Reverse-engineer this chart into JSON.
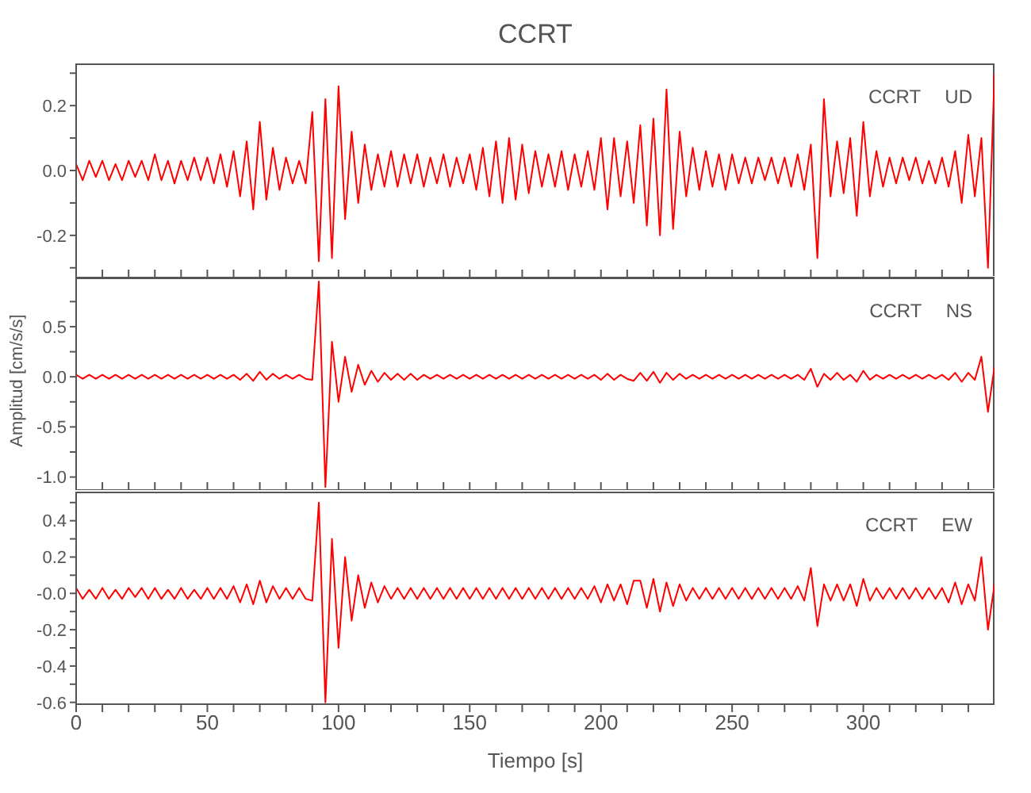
{
  "chart_data": [
    {
      "type": "line",
      "title": "CCRT",
      "annotations": [
        "CCRT UD"
      ],
      "tick_labels": "y",
      "legend": false,
      "marker": "none",
      "xlim": [
        0,
        350
      ],
      "ylim": [
        -0.33,
        0.33
      ],
      "xticks": [
        0,
        {
          "value": 10,
          "label": null
        },
        {
          "value": 20,
          "label": null
        },
        {
          "value": 30,
          "label": null
        },
        {
          "value": 40,
          "label": null
        },
        50,
        {
          "value": 60,
          "label": null
        },
        {
          "value": 70,
          "label": null
        },
        {
          "value": 80,
          "label": null
        },
        {
          "value": 90,
          "label": null
        },
        100,
        {
          "value": 110,
          "label": null
        },
        {
          "value": 120,
          "label": null
        },
        {
          "value": 130,
          "label": null
        },
        {
          "value": 140,
          "label": null
        },
        150,
        {
          "value": 160,
          "label": null
        },
        {
          "value": 170,
          "label": null
        },
        {
          "value": 180,
          "label": null
        },
        {
          "value": 190,
          "label": null
        },
        200,
        {
          "value": 210,
          "label": null
        },
        {
          "value": 220,
          "label": null
        },
        {
          "value": 230,
          "label": null
        },
        {
          "value": 240,
          "label": null
        },
        250,
        {
          "value": 260,
          "label": null
        },
        {
          "value": 270,
          "label": null
        },
        {
          "value": 280,
          "label": null
        },
        {
          "value": 290,
          "label": null
        },
        300,
        {
          "value": 310,
          "label": null
        },
        {
          "value": 320,
          "label": null
        },
        {
          "value": 330,
          "label": null
        },
        {
          "value": 340,
          "label": null
        }
      ],
      "yticks": [
        {
          "value": -0.3,
          "label": null
        },
        -0.2,
        {
          "value": -0.1,
          "label": null
        },
        {
          "value": 0,
          "label": "0.0"
        },
        {
          "value": 0.1,
          "label": null
        },
        0.2,
        {
          "value": 0.3,
          "label": null
        }
      ],
      "x": [
        0,
        2.5,
        5,
        7.5,
        10,
        12.5,
        15,
        17.5,
        20,
        22.5,
        25,
        27.5,
        30,
        32.5,
        35,
        37.5,
        40,
        42.5,
        45,
        47.5,
        50,
        52.5,
        55,
        57.5,
        60,
        62.5,
        65,
        67.5,
        70,
        72.5,
        75,
        77.5,
        80,
        82.5,
        85,
        87.5,
        90,
        92.5,
        95,
        97.5,
        100,
        102.5,
        105,
        107.5,
        110,
        112.5,
        115,
        117.5,
        120,
        122.5,
        125,
        127.5,
        130,
        132.5,
        135,
        137.5,
        140,
        142.5,
        145,
        147.5,
        150,
        152.5,
        155,
        157.5,
        160,
        162.5,
        165,
        167.5,
        170,
        172.5,
        175,
        177.5,
        180,
        182.5,
        185,
        187.5,
        190,
        192.5,
        195,
        197.5,
        200,
        202.5,
        205,
        207.5,
        210,
        212.5,
        215,
        217.5,
        220,
        222.5,
        225,
        227.5,
        230,
        232.5,
        235,
        237.5,
        240,
        242.5,
        245,
        247.5,
        250,
        252.5,
        255,
        257.5,
        260,
        262.5,
        265,
        267.5,
        270,
        272.5,
        275,
        277.5,
        280,
        282.5,
        285,
        287.5,
        290,
        292.5,
        295,
        297.5,
        300,
        302.5,
        305,
        307.5,
        310,
        312.5,
        315,
        317.5,
        320,
        322.5,
        325,
        327.5,
        330,
        332.5,
        335,
        337.5,
        340,
        342.5,
        345,
        347.5,
        350
      ],
      "series": [
        {
          "color": "#ff0000",
          "values": [
            0.02,
            -0.03,
            0.03,
            -0.02,
            0.03,
            -0.03,
            0.02,
            -0.03,
            0.03,
            -0.02,
            0.03,
            -0.03,
            0.05,
            -0.03,
            0.03,
            -0.04,
            0.03,
            -0.03,
            0.04,
            -0.03,
            0.04,
            -0.04,
            0.05,
            -0.05,
            0.06,
            -0.08,
            0.09,
            -0.12,
            0.15,
            -0.09,
            0.07,
            -0.06,
            0.04,
            -0.04,
            0.03,
            -0.04,
            0.18,
            -0.28,
            0.22,
            -0.27,
            0.26,
            -0.15,
            0.12,
            -0.1,
            0.08,
            -0.06,
            0.05,
            -0.05,
            0.06,
            -0.05,
            0.05,
            -0.04,
            0.05,
            -0.05,
            0.04,
            -0.04,
            0.05,
            -0.05,
            0.04,
            -0.04,
            0.05,
            -0.06,
            0.07,
            -0.08,
            0.09,
            -0.1,
            0.1,
            -0.09,
            0.08,
            -0.07,
            0.06,
            -0.05,
            0.05,
            -0.05,
            0.06,
            -0.06,
            0.05,
            -0.05,
            0.06,
            -0.06,
            0.1,
            -0.12,
            0.1,
            -0.08,
            0.09,
            -0.1,
            0.14,
            -0.17,
            0.16,
            -0.2,
            0.25,
            -0.18,
            0.12,
            -0.08,
            0.07,
            -0.06,
            0.06,
            -0.05,
            0.05,
            -0.06,
            0.05,
            -0.04,
            0.04,
            -0.04,
            0.04,
            -0.03,
            0.04,
            -0.04,
            0.04,
            -0.05,
            0.05,
            -0.06,
            0.08,
            -0.27,
            0.22,
            -0.08,
            0.09,
            -0.07,
            0.1,
            -0.14,
            0.15,
            -0.08,
            0.06,
            -0.05,
            0.04,
            -0.04,
            0.04,
            -0.03,
            0.04,
            -0.04,
            0.03,
            -0.04,
            0.04,
            -0.05,
            0.06,
            -0.1,
            0.11,
            -0.08,
            0.1,
            -0.3,
            0.3
          ]
        }
      ]
    },
    {
      "type": "line",
      "ylabel": "Amplitud [cm/s/s]",
      "annotations": [
        "CCRT NS"
      ],
      "tick_labels": "y",
      "legend": false,
      "marker": "none",
      "xlim": [
        0,
        350
      ],
      "ylim": [
        -1.13,
        0.99
      ],
      "xticks": [
        0,
        {
          "value": 10,
          "label": null
        },
        {
          "value": 20,
          "label": null
        },
        {
          "value": 30,
          "label": null
        },
        {
          "value": 40,
          "label": null
        },
        50,
        {
          "value": 60,
          "label": null
        },
        {
          "value": 70,
          "label": null
        },
        {
          "value": 80,
          "label": null
        },
        {
          "value": 90,
          "label": null
        },
        100,
        {
          "value": 110,
          "label": null
        },
        {
          "value": 120,
          "label": null
        },
        {
          "value": 130,
          "label": null
        },
        {
          "value": 140,
          "label": null
        },
        150,
        {
          "value": 160,
          "label": null
        },
        {
          "value": 170,
          "label": null
        },
        {
          "value": 180,
          "label": null
        },
        {
          "value": 190,
          "label": null
        },
        200,
        {
          "value": 210,
          "label": null
        },
        {
          "value": 220,
          "label": null
        },
        {
          "value": 230,
          "label": null
        },
        {
          "value": 240,
          "label": null
        },
        250,
        {
          "value": 260,
          "label": null
        },
        {
          "value": 270,
          "label": null
        },
        {
          "value": 280,
          "label": null
        },
        {
          "value": 290,
          "label": null
        },
        300,
        {
          "value": 310,
          "label": null
        },
        {
          "value": 320,
          "label": null
        },
        {
          "value": 330,
          "label": null
        },
        {
          "value": 340,
          "label": null
        }
      ],
      "yticks": [
        {
          "value": -1,
          "label": "-1.0"
        },
        {
          "value": -0.75,
          "label": null
        },
        -0.5,
        {
          "value": -0.25,
          "label": null
        },
        {
          "value": 0,
          "label": "0.0"
        },
        {
          "value": 0.25,
          "label": null
        },
        0.5,
        {
          "value": 0.75,
          "label": null
        }
      ],
      "x": [
        0,
        2.5,
        5,
        7.5,
        10,
        12.5,
        15,
        17.5,
        20,
        22.5,
        25,
        27.5,
        30,
        32.5,
        35,
        37.5,
        40,
        42.5,
        45,
        47.5,
        50,
        52.5,
        55,
        57.5,
        60,
        62.5,
        65,
        67.5,
        70,
        72.5,
        75,
        77.5,
        80,
        82.5,
        85,
        87.5,
        90,
        92.5,
        95,
        97.5,
        100,
        102.5,
        105,
        107.5,
        110,
        112.5,
        115,
        117.5,
        120,
        122.5,
        125,
        127.5,
        130,
        132.5,
        135,
        137.5,
        140,
        142.5,
        145,
        147.5,
        150,
        152.5,
        155,
        157.5,
        160,
        162.5,
        165,
        167.5,
        170,
        172.5,
        175,
        177.5,
        180,
        182.5,
        185,
        187.5,
        190,
        192.5,
        195,
        197.5,
        200,
        202.5,
        205,
        207.5,
        210,
        212.5,
        215,
        217.5,
        220,
        222.5,
        225,
        227.5,
        230,
        232.5,
        235,
        237.5,
        240,
        242.5,
        245,
        247.5,
        250,
        252.5,
        255,
        257.5,
        260,
        262.5,
        265,
        267.5,
        270,
        272.5,
        275,
        277.5,
        280,
        282.5,
        285,
        287.5,
        290,
        292.5,
        295,
        297.5,
        300,
        302.5,
        305,
        307.5,
        310,
        312.5,
        315,
        317.5,
        320,
        322.5,
        325,
        327.5,
        330,
        332.5,
        335,
        337.5,
        340,
        342.5,
        345,
        347.5,
        350
      ],
      "series": [
        {
          "color": "#ff0000",
          "values": [
            0.02,
            -0.02,
            0.02,
            -0.02,
            0.02,
            -0.02,
            0.02,
            -0.02,
            0.02,
            -0.02,
            0.02,
            -0.02,
            0.02,
            -0.02,
            0.02,
            -0.02,
            0.02,
            -0.02,
            0.02,
            -0.02,
            0.02,
            -0.02,
            0.02,
            -0.02,
            0.02,
            -0.03,
            0.03,
            -0.04,
            0.05,
            -0.03,
            0.03,
            -0.02,
            0.02,
            -0.02,
            0.02,
            -0.02,
            -0.03,
            0.95,
            -1.1,
            0.35,
            -0.25,
            0.2,
            -0.15,
            0.12,
            -0.08,
            0.06,
            -0.05,
            0.04,
            -0.03,
            0.03,
            -0.03,
            0.03,
            -0.03,
            0.02,
            -0.02,
            0.02,
            -0.02,
            0.02,
            -0.02,
            0.02,
            -0.02,
            0.02,
            -0.02,
            0.02,
            -0.02,
            0.02,
            -0.02,
            0.02,
            -0.02,
            0.02,
            -0.02,
            0.02,
            -0.02,
            0.02,
            -0.02,
            0.02,
            -0.02,
            0.02,
            -0.02,
            0.02,
            -0.03,
            0.03,
            -0.03,
            0.02,
            -0.02,
            -0.04,
            0.04,
            -0.04,
            0.05,
            -0.06,
            0.04,
            -0.03,
            0.03,
            -0.02,
            0.02,
            -0.02,
            0.02,
            -0.02,
            0.02,
            -0.02,
            0.02,
            -0.02,
            0.02,
            -0.02,
            0.02,
            -0.02,
            0.02,
            -0.02,
            0.02,
            -0.02,
            0.02,
            -0.03,
            0.08,
            -0.1,
            0.03,
            -0.03,
            0.04,
            -0.03,
            0.02,
            -0.05,
            0.06,
            -0.03,
            0.02,
            -0.02,
            0.02,
            -0.02,
            0.02,
            -0.02,
            0.02,
            -0.02,
            0.02,
            -0.02,
            0.02,
            -0.03,
            0.04,
            -0.05,
            0.04,
            -0.03,
            0.2,
            -0.35,
            0.1
          ]
        }
      ]
    },
    {
      "type": "line",
      "xlabel": "Tiempo [s]",
      "annotations": [
        "CCRT EW"
      ],
      "legend": false,
      "marker": "none",
      "xlim": [
        0,
        350
      ],
      "ylim": [
        -0.61,
        0.56
      ],
      "xticks": [
        0,
        {
          "value": 10,
          "label": null
        },
        {
          "value": 20,
          "label": null
        },
        {
          "value": 30,
          "label": null
        },
        {
          "value": 40,
          "label": null
        },
        50,
        {
          "value": 60,
          "label": null
        },
        {
          "value": 70,
          "label": null
        },
        {
          "value": 80,
          "label": null
        },
        {
          "value": 90,
          "label": null
        },
        100,
        {
          "value": 110,
          "label": null
        },
        {
          "value": 120,
          "label": null
        },
        {
          "value": 130,
          "label": null
        },
        {
          "value": 140,
          "label": null
        },
        150,
        {
          "value": 160,
          "label": null
        },
        {
          "value": 170,
          "label": null
        },
        {
          "value": 180,
          "label": null
        },
        {
          "value": 190,
          "label": null
        },
        200,
        {
          "value": 210,
          "label": null
        },
        {
          "value": 220,
          "label": null
        },
        {
          "value": 230,
          "label": null
        },
        {
          "value": 240,
          "label": null
        },
        250,
        {
          "value": 260,
          "label": null
        },
        {
          "value": 270,
          "label": null
        },
        {
          "value": 280,
          "label": null
        },
        {
          "value": 290,
          "label": null
        },
        300,
        {
          "value": 310,
          "label": null
        },
        {
          "value": 320,
          "label": null
        },
        {
          "value": 330,
          "label": null
        },
        {
          "value": 340,
          "label": null
        }
      ],
      "yticks": [
        -0.6,
        {
          "value": -0.5,
          "label": null
        },
        -0.4,
        {
          "value": -0.3,
          "label": null
        },
        -0.2,
        {
          "value": -0.1,
          "label": null
        },
        {
          "value": 0,
          "label": "-0.0"
        },
        {
          "value": 0.1,
          "label": null
        },
        0.2,
        {
          "value": 0.3,
          "label": null
        },
        0.4,
        {
          "value": 0.5,
          "label": null
        }
      ],
      "x": [
        0,
        2.5,
        5,
        7.5,
        10,
        12.5,
        15,
        17.5,
        20,
        22.5,
        25,
        27.5,
        30,
        32.5,
        35,
        37.5,
        40,
        42.5,
        45,
        47.5,
        50,
        52.5,
        55,
        57.5,
        60,
        62.5,
        65,
        67.5,
        70,
        72.5,
        75,
        77.5,
        80,
        82.5,
        85,
        87.5,
        90,
        92.5,
        95,
        97.5,
        100,
        102.5,
        105,
        107.5,
        110,
        112.5,
        115,
        117.5,
        120,
        122.5,
        125,
        127.5,
        130,
        132.5,
        135,
        137.5,
        140,
        142.5,
        145,
        147.5,
        150,
        152.5,
        155,
        157.5,
        160,
        162.5,
        165,
        167.5,
        170,
        172.5,
        175,
        177.5,
        180,
        182.5,
        185,
        187.5,
        190,
        192.5,
        195,
        197.5,
        200,
        202.5,
        205,
        207.5,
        210,
        212.5,
        215,
        217.5,
        220,
        222.5,
        225,
        227.5,
        230,
        232.5,
        235,
        237.5,
        240,
        242.5,
        245,
        247.5,
        250,
        252.5,
        255,
        257.5,
        260,
        262.5,
        265,
        267.5,
        270,
        272.5,
        275,
        277.5,
        280,
        282.5,
        285,
        287.5,
        290,
        292.5,
        295,
        297.5,
        300,
        302.5,
        305,
        307.5,
        310,
        312.5,
        315,
        317.5,
        320,
        322.5,
        325,
        327.5,
        330,
        332.5,
        335,
        337.5,
        340,
        342.5,
        345,
        347.5,
        350
      ],
      "series": [
        {
          "color": "#ff0000",
          "values": [
            0.03,
            -0.03,
            0.02,
            -0.03,
            0.03,
            -0.03,
            0.02,
            -0.03,
            0.03,
            -0.02,
            0.03,
            -0.03,
            0.03,
            -0.03,
            0.02,
            -0.03,
            0.03,
            -0.03,
            0.02,
            -0.03,
            0.03,
            -0.03,
            0.03,
            -0.03,
            0.04,
            -0.05,
            0.05,
            -0.06,
            0.07,
            -0.05,
            0.04,
            -0.03,
            0.03,
            -0.03,
            0.03,
            -0.03,
            -0.04,
            0.5,
            -0.6,
            0.3,
            -0.3,
            0.2,
            -0.15,
            0.1,
            -0.08,
            0.06,
            -0.05,
            0.04,
            -0.03,
            0.03,
            -0.03,
            0.03,
            -0.03,
            0.03,
            -0.03,
            0.03,
            -0.03,
            0.03,
            -0.03,
            0.03,
            -0.03,
            0.03,
            -0.03,
            0.03,
            -0.03,
            0.03,
            -0.03,
            0.03,
            -0.03,
            0.03,
            -0.03,
            0.03,
            -0.03,
            0.03,
            -0.03,
            0.03,
            -0.03,
            0.03,
            -0.03,
            0.04,
            -0.05,
            0.05,
            -0.04,
            0.05,
            -0.06,
            0.07,
            0.07,
            -0.08,
            0.08,
            -0.1,
            0.06,
            -0.07,
            0.05,
            -0.04,
            0.03,
            -0.03,
            0.03,
            -0.03,
            0.03,
            -0.03,
            0.03,
            -0.03,
            0.03,
            -0.03,
            0.03,
            -0.03,
            0.03,
            -0.03,
            0.03,
            -0.03,
            0.04,
            -0.04,
            0.14,
            -0.18,
            0.05,
            -0.04,
            0.05,
            -0.04,
            0.05,
            -0.07,
            0.08,
            -0.04,
            0.03,
            -0.03,
            0.03,
            -0.03,
            0.03,
            -0.03,
            0.03,
            -0.03,
            0.03,
            -0.03,
            0.03,
            -0.05,
            0.06,
            -0.06,
            0.05,
            -0.04,
            0.2,
            -0.2,
            0.05
          ]
        }
      ]
    }
  ]
}
